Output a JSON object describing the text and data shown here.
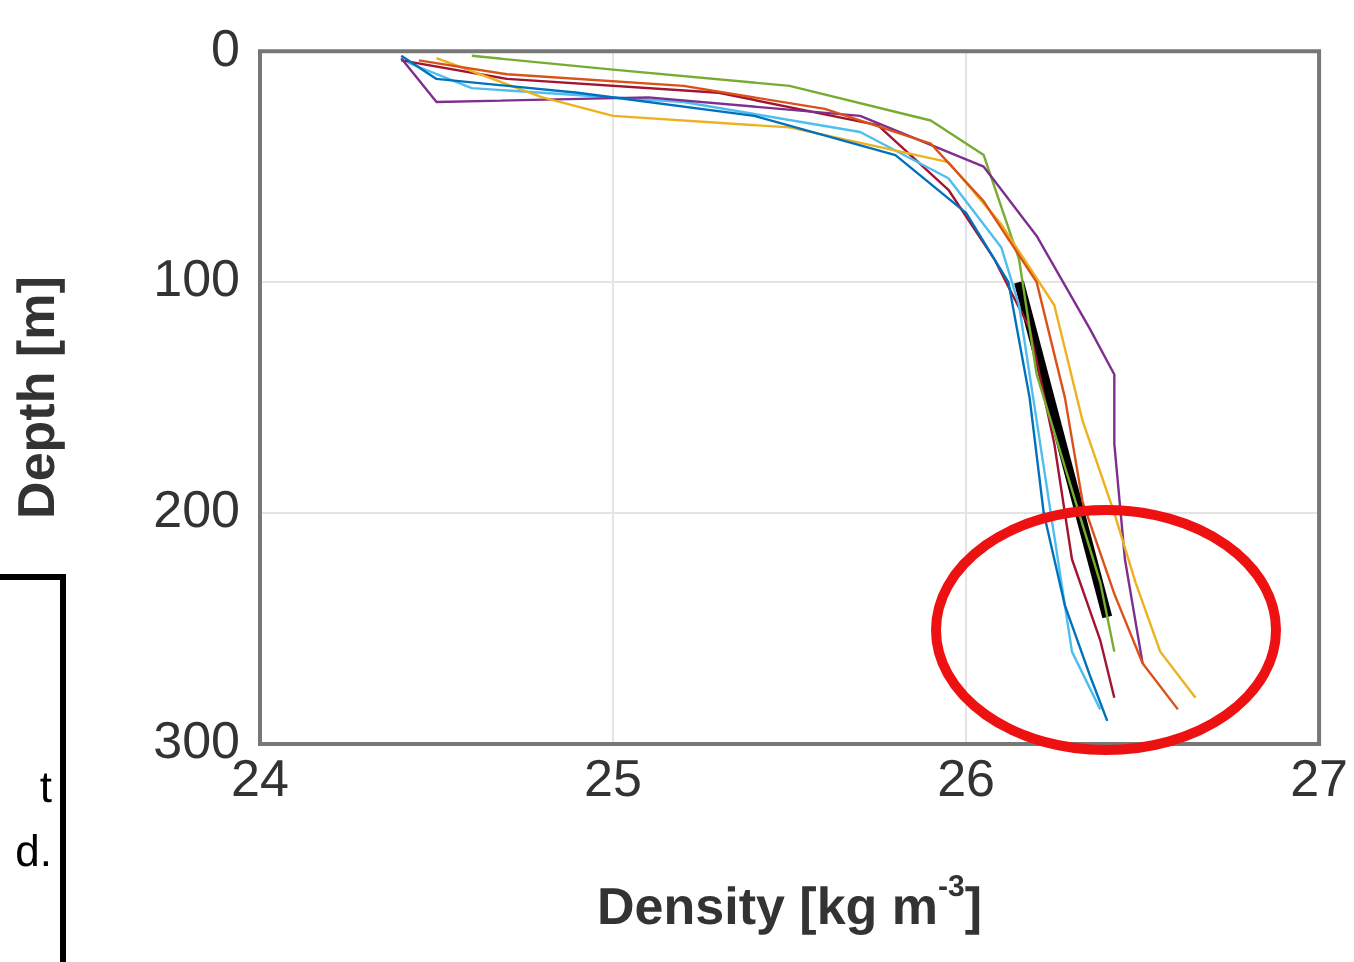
{
  "chart_data": {
    "type": "line",
    "xlabel": "Density [kg m$^{-3}$]",
    "ylabel": "Depth [m]",
    "xlim": [
      24,
      27
    ],
    "xticks": [
      24,
      25,
      26,
      27
    ],
    "ylim": [
      300,
      0
    ],
    "yticks": [
      0,
      100,
      200,
      300
    ],
    "grid": true,
    "marker": "none",
    "line_style": "solid",
    "annotations": [
      "t",
      "d."
    ],
    "series": [
      {
        "color": "#0072bd",
        "x": [
          24.4,
          24.5,
          24.9,
          25.4,
          25.8,
          26.0,
          26.12,
          26.18,
          26.22,
          26.28,
          26.35,
          26.4
        ],
        "values": [
          2,
          12,
          18,
          28,
          45,
          70,
          100,
          150,
          200,
          240,
          270,
          290
        ]
      },
      {
        "color": "#d95319",
        "x": [
          24.45,
          24.7,
          25.2,
          25.6,
          25.9,
          26.05,
          26.2,
          26.28,
          26.33,
          26.42,
          26.5,
          26.6
        ],
        "values": [
          4,
          10,
          15,
          25,
          40,
          65,
          100,
          150,
          195,
          235,
          265,
          285
        ]
      },
      {
        "color": "#edb120",
        "x": [
          24.5,
          24.8,
          25.0,
          25.5,
          25.95,
          26.1,
          26.25,
          26.33,
          26.42,
          26.48,
          26.55,
          26.65
        ],
        "values": [
          3,
          20,
          28,
          33,
          48,
          75,
          110,
          160,
          200,
          230,
          260,
          280
        ]
      },
      {
        "color": "#7e2f8e",
        "x": [
          24.4,
          24.5,
          25.1,
          25.7,
          26.05,
          26.2,
          26.35,
          26.42,
          26.42,
          26.45,
          26.5
        ],
        "values": [
          3,
          22,
          20,
          28,
          50,
          80,
          120,
          140,
          170,
          220,
          265
        ]
      },
      {
        "color": "#77ac30",
        "x": [
          24.6,
          25.0,
          25.5,
          25.9,
          26.05,
          26.15,
          26.2,
          26.3,
          26.38,
          26.42
        ],
        "values": [
          2,
          8,
          15,
          30,
          45,
          90,
          140,
          190,
          230,
          260
        ]
      },
      {
        "color": "#4dbeee",
        "x": [
          24.42,
          24.6,
          25.2,
          25.7,
          25.95,
          26.1,
          26.15,
          26.2,
          26.25,
          26.3,
          26.38
        ],
        "values": [
          5,
          16,
          22,
          35,
          55,
          85,
          110,
          160,
          210,
          260,
          285
        ]
      },
      {
        "color": "#a2142f",
        "x": [
          24.4,
          24.7,
          25.3,
          25.75,
          25.95,
          26.08,
          26.18,
          26.25,
          26.3,
          26.38,
          26.42
        ],
        "values": [
          4,
          12,
          18,
          32,
          60,
          90,
          120,
          170,
          220,
          255,
          280
        ]
      },
      {
        "color": "#000000",
        "x": [
          26.15,
          26.4
        ],
        "values": [
          100,
          245
        ]
      }
    ]
  }
}
